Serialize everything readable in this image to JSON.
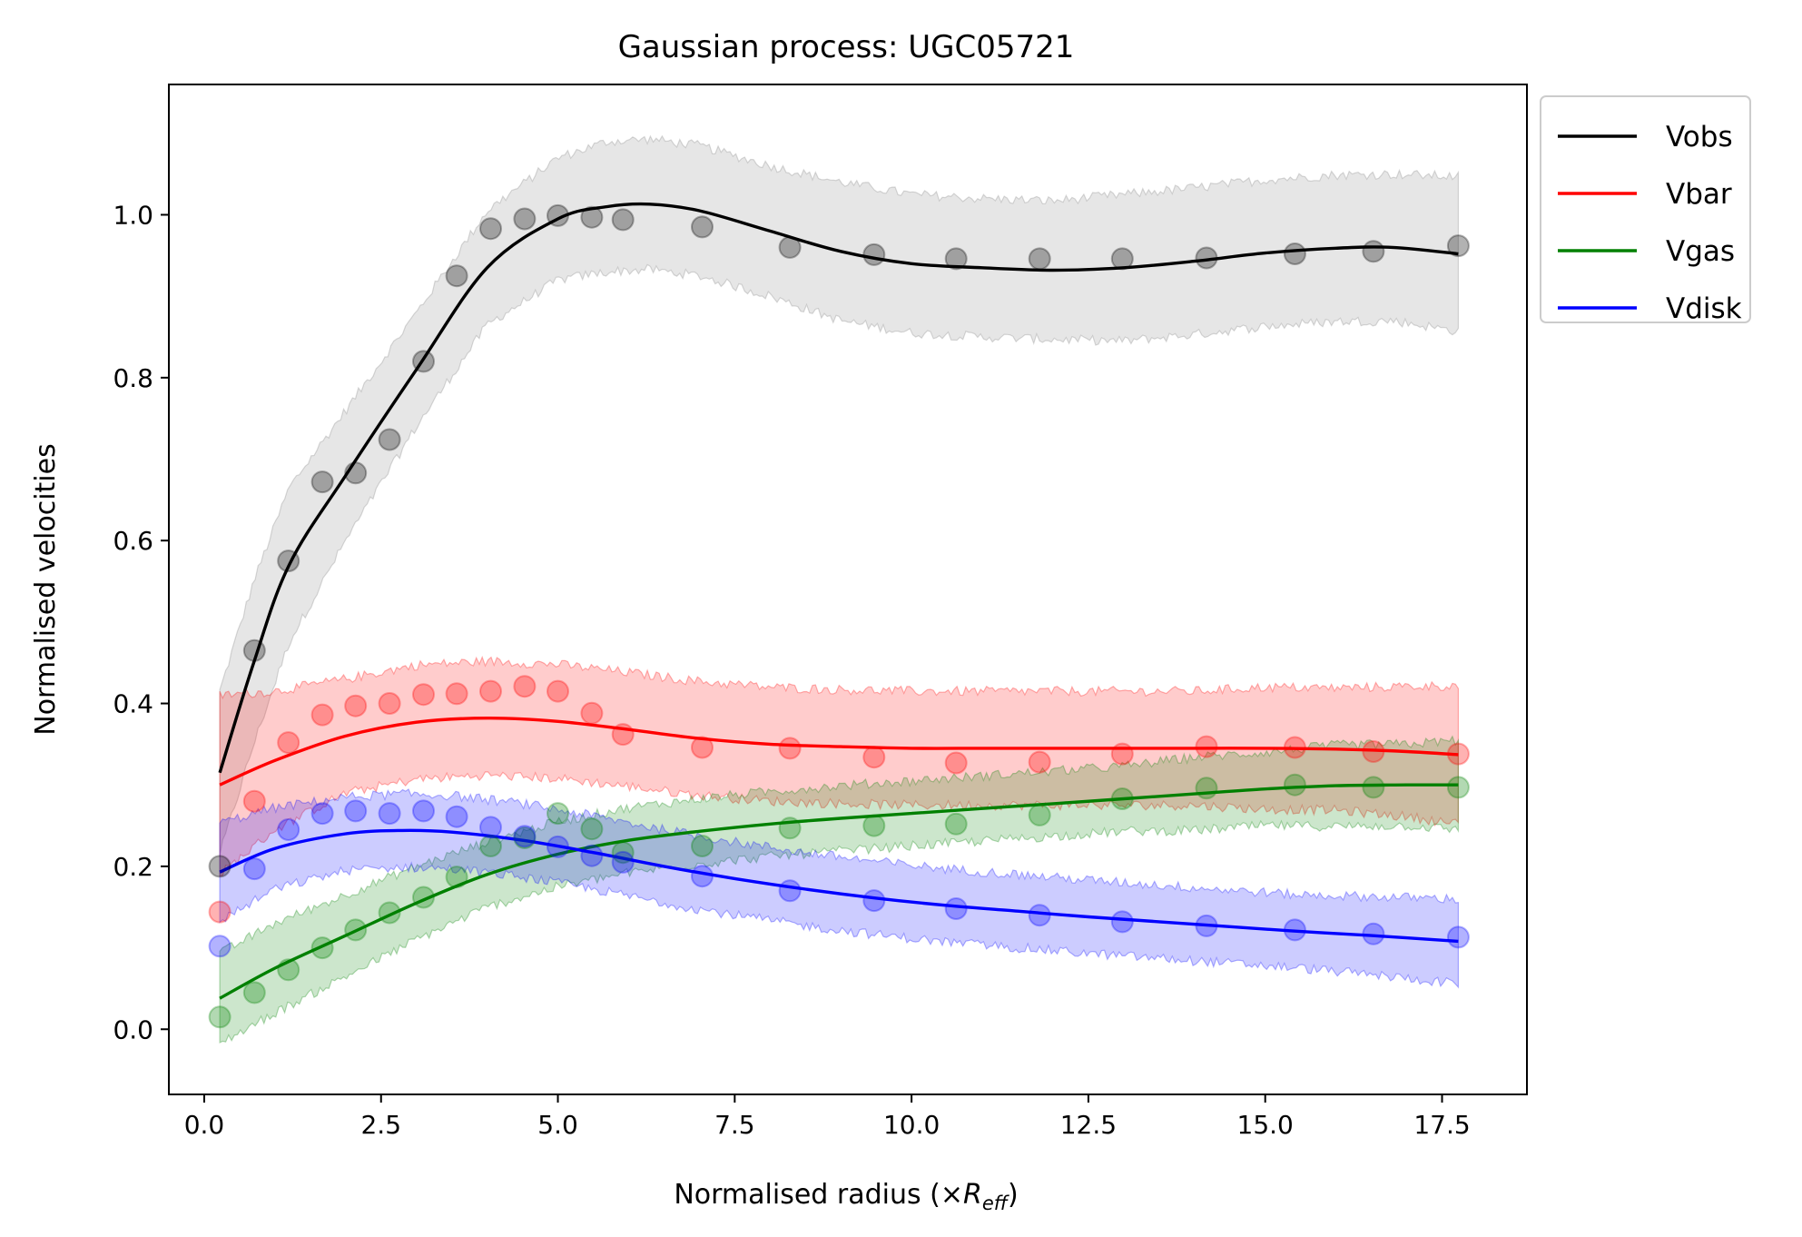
{
  "chart_data": {
    "type": "line",
    "title": "Gaussian process: UGC05721",
    "xlabel": "Normalised radius (×",
    "xlabel_math": "R",
    "xlabel_sub": "eff",
    "xlabel_close": ")",
    "ylabel": "Normalised velocities",
    "xlim": [
      -0.5,
      18.7
    ],
    "ylim": [
      -0.08,
      1.16
    ],
    "xticks": [
      "0.0",
      "2.5",
      "5.0",
      "7.5",
      "10.0",
      "12.5",
      "15.0",
      "17.5"
    ],
    "yticks": [
      "0.0",
      "0.2",
      "0.4",
      "0.6",
      "0.8",
      "1.0"
    ],
    "legend_position": "outside-top-right",
    "grid": false,
    "x": [
      0.22,
      0.71,
      1.19,
      1.67,
      2.14,
      2.62,
      3.1,
      3.57,
      4.05,
      4.53,
      5.0,
      5.48,
      5.92,
      7.04,
      8.28,
      9.47,
      10.63,
      11.81,
      12.98,
      14.17,
      15.42,
      16.53,
      17.73
    ],
    "series": [
      {
        "name": "Vobs",
        "color": "#000000",
        "band_color": "#808080",
        "points": [
          0.2,
          0.465,
          0.575,
          0.672,
          0.683,
          0.724,
          0.82,
          0.925,
          0.983,
          0.995,
          0.999,
          0.997,
          0.994,
          0.985,
          0.96,
          0.951,
          0.946,
          0.946,
          0.946,
          0.947,
          0.952,
          0.955,
          0.962
        ],
        "curve_x": [
          0.22,
          0.7,
          1.2,
          2.0,
          3.0,
          4.0,
          5.0,
          5.7,
          6.3,
          7.0,
          8.0,
          9.0,
          10.0,
          11.0,
          12.0,
          13.0,
          14.0,
          15.0,
          16.0,
          16.8,
          17.73
        ],
        "curve_y": [
          0.315,
          0.45,
          0.57,
          0.68,
          0.81,
          0.935,
          0.995,
          1.01,
          1.013,
          1.005,
          0.98,
          0.955,
          0.94,
          0.935,
          0.932,
          0.935,
          0.943,
          0.953,
          0.959,
          0.96,
          0.952
        ],
        "band_half_width": [
          0.1,
          0.1,
          0.095,
          0.08,
          0.07,
          0.07,
          0.075,
          0.08,
          0.08,
          0.08,
          0.08,
          0.085,
          0.085,
          0.085,
          0.085,
          0.09,
          0.09,
          0.09,
          0.09,
          0.09,
          0.095
        ]
      },
      {
        "name": "Vbar",
        "color": "#ff0000",
        "band_color": "#ff0000",
        "points": [
          0.144,
          0.28,
          0.352,
          0.386,
          0.397,
          0.4,
          0.411,
          0.412,
          0.415,
          0.421,
          0.415,
          0.388,
          0.362,
          0.346,
          0.345,
          0.334,
          0.327,
          0.328,
          0.338,
          0.347,
          0.346,
          0.341,
          0.338
        ],
        "curve_x": [
          0.22,
          1.0,
          2.0,
          3.0,
          4.0,
          5.0,
          6.0,
          7.0,
          8.0,
          9.0,
          10.0,
          11.0,
          12.0,
          13.0,
          14.0,
          15.0,
          16.0,
          17.0,
          17.73
        ],
        "curve_y": [
          0.3,
          0.33,
          0.36,
          0.377,
          0.382,
          0.378,
          0.368,
          0.357,
          0.35,
          0.347,
          0.345,
          0.345,
          0.345,
          0.345,
          0.345,
          0.345,
          0.344,
          0.341,
          0.337
        ],
        "band_half_width": [
          0.11,
          0.085,
          0.07,
          0.07,
          0.07,
          0.07,
          0.07,
          0.07,
          0.07,
          0.07,
          0.07,
          0.07,
          0.07,
          0.07,
          0.07,
          0.075,
          0.075,
          0.08,
          0.085
        ]
      },
      {
        "name": "Vgas",
        "color": "#008000",
        "band_color": "#008000",
        "points": [
          0.015,
          0.045,
          0.073,
          0.1,
          0.122,
          0.143,
          0.162,
          0.187,
          0.225,
          0.235,
          0.265,
          0.246,
          0.217,
          0.225,
          0.247,
          0.25,
          0.252,
          0.263,
          0.283,
          0.296,
          0.3,
          0.297,
          0.297
        ],
        "curve_x": [
          0.22,
          1.0,
          2.0,
          3.0,
          4.0,
          5.0,
          6.0,
          7.0,
          8.0,
          9.0,
          10.0,
          11.0,
          12.0,
          13.0,
          14.0,
          15.0,
          16.0,
          17.0,
          17.73
        ],
        "curve_y": [
          0.038,
          0.075,
          0.115,
          0.155,
          0.19,
          0.215,
          0.232,
          0.243,
          0.252,
          0.259,
          0.265,
          0.271,
          0.277,
          0.283,
          0.289,
          0.295,
          0.299,
          0.3,
          0.3
        ],
        "band_half_width": [
          0.055,
          0.055,
          0.05,
          0.045,
          0.04,
          0.04,
          0.04,
          0.04,
          0.04,
          0.04,
          0.04,
          0.04,
          0.04,
          0.04,
          0.045,
          0.045,
          0.05,
          0.05,
          0.055
        ]
      },
      {
        "name": "Vdisk",
        "color": "#0000ff",
        "band_color": "#0000ff",
        "points": [
          0.102,
          0.197,
          0.245,
          0.265,
          0.268,
          0.265,
          0.268,
          0.261,
          0.248,
          0.237,
          0.224,
          0.213,
          0.205,
          0.188,
          0.17,
          0.158,
          0.148,
          0.14,
          0.132,
          0.127,
          0.122,
          0.117,
          0.113
        ],
        "curve_x": [
          0.22,
          1.0,
          2.0,
          2.8,
          3.5,
          4.5,
          5.5,
          6.5,
          7.5,
          8.5,
          9.5,
          10.5,
          11.5,
          12.5,
          13.5,
          14.5,
          15.5,
          16.5,
          17.73
        ],
        "curve_y": [
          0.193,
          0.222,
          0.24,
          0.244,
          0.242,
          0.232,
          0.217,
          0.2,
          0.185,
          0.172,
          0.161,
          0.152,
          0.145,
          0.138,
          0.132,
          0.126,
          0.12,
          0.115,
          0.108
        ],
        "band_half_width": [
          0.06,
          0.05,
          0.045,
          0.045,
          0.045,
          0.045,
          0.045,
          0.045,
          0.045,
          0.045,
          0.045,
          0.045,
          0.045,
          0.045,
          0.045,
          0.045,
          0.045,
          0.048,
          0.052
        ]
      }
    ]
  }
}
